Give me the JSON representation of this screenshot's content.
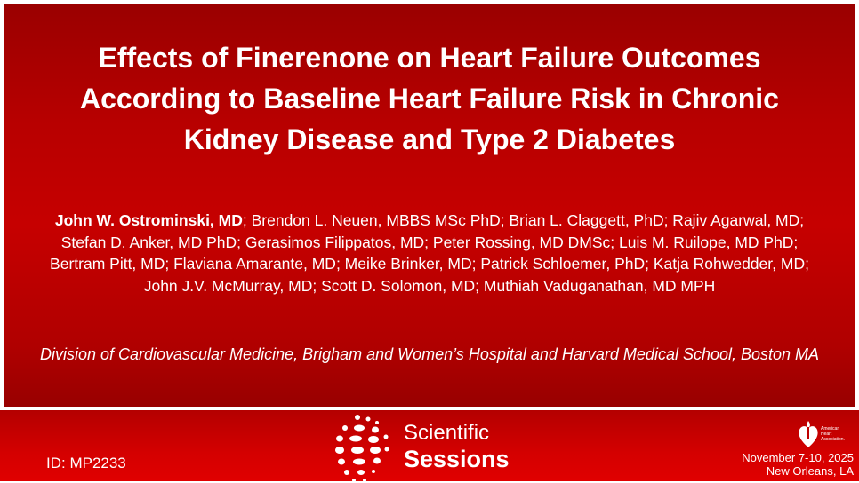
{
  "slide": {
    "title": "Effects of Finerenone on Heart Failure Outcomes According to Baseline Heart Failure Risk in Chronic Kidney Disease and Type 2 Diabetes",
    "presenting_author": "John W. Ostrominski, MD",
    "other_authors": "; Brendon L. Neuen, MBBS MSc PhD; Brian L. Claggett, PhD; Rajiv Agarwal, MD; Stefan D. Anker, MD PhD; Gerasimos Filippatos, MD; Peter Rossing, MD DMSc; Luis M. Ruilope, MD PhD; Bertram Pitt, MD; Flaviana Amarante, MD; Meike Brinker, MD; Patrick Schloemer, PhD; Katja Rohwedder, MD; John J.V. McMurray, MD; Scott D. Solomon, MD; Muthiah Vaduganathan, MD MPH",
    "affiliation": "Division of Cardiovascular Medicine, Brigham and Women’s Hospital and Harvard Medical School, Boston MA"
  },
  "footer": {
    "abstract_id": "ID: MP2233",
    "event_line1": "Scientific",
    "event_line2": "Sessions",
    "org_logo_text": "American Heart Association.",
    "dates": "November 7-10, 2025",
    "location": "New Orleans, LA"
  },
  "colors": {
    "slide_red": "#c00000",
    "footer_red": "#d40000",
    "text": "#ffffff"
  }
}
